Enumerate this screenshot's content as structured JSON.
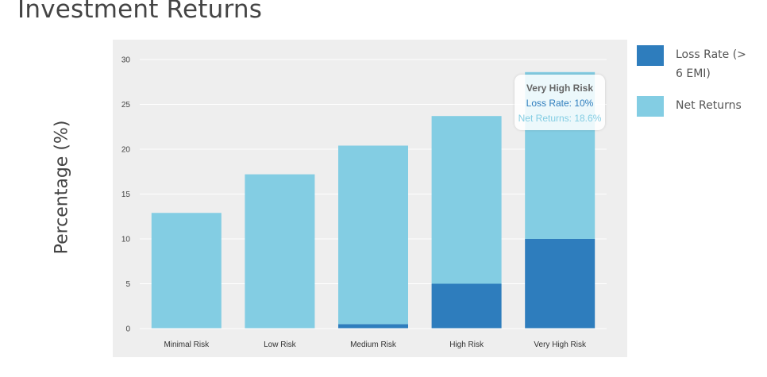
{
  "page": {
    "title": "Investment Returns"
  },
  "chart_data": {
    "type": "bar",
    "stacked": true,
    "categories": [
      "Minimal Risk",
      "Low Risk",
      "Medium Risk",
      "High Risk",
      "Very High Risk"
    ],
    "series": [
      {
        "name": "Loss Rate (> 6 EMI)",
        "color": "#2e7dbd",
        "values": [
          0,
          0,
          0.5,
          5,
          10
        ]
      },
      {
        "name": "Net Returns",
        "color": "#83cde3",
        "values": [
          12.9,
          17.2,
          19.9,
          18.7,
          18.6
        ]
      }
    ],
    "ylabel": "Percentage (%)",
    "xlabel": "",
    "ylim": [
      0,
      30
    ],
    "yticks": [
      0,
      5,
      10,
      15,
      20,
      25,
      30
    ],
    "grid": true,
    "plot_background": "#eeeeee",
    "legend_position": "right",
    "tooltip": {
      "title": "Very High Risk",
      "rows": [
        {
          "label": "Loss Rate: 10%",
          "color": "#2e7dbd"
        },
        {
          "label": "Net Returns: 18.6%",
          "color": "#83cde3"
        }
      ]
    }
  }
}
